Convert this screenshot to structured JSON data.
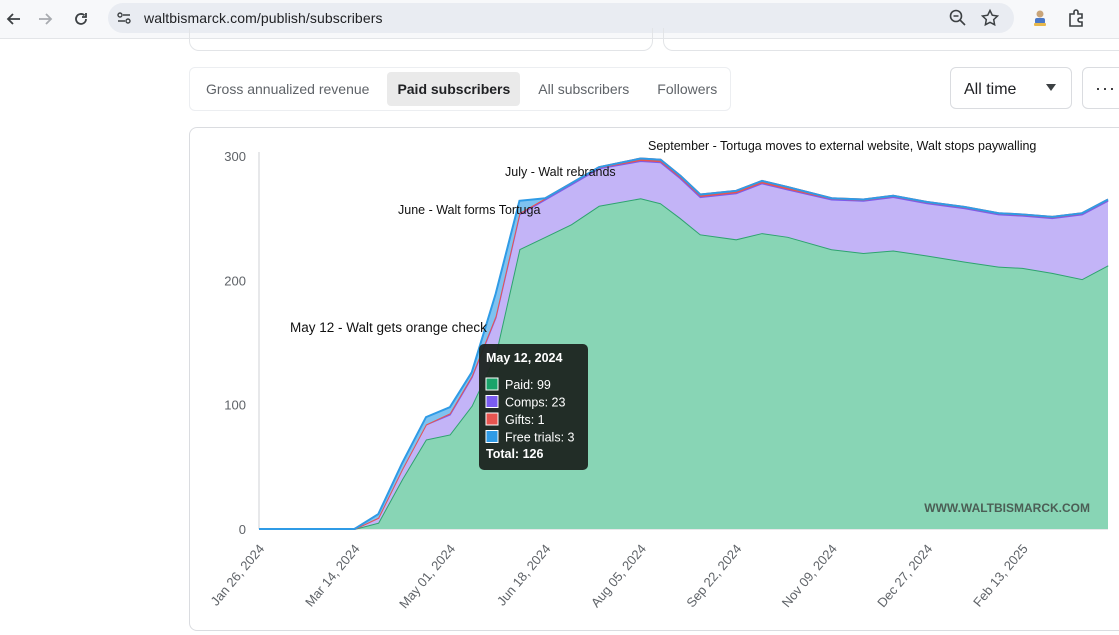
{
  "browser": {
    "url": "waltbismarck.com/publish/subscribers",
    "icons": [
      "back-arrow-icon",
      "forward-arrow-icon",
      "reload-icon",
      "site-info-icon",
      "zoom-icon",
      "bookmark-star-icon",
      "profile-extension-icon",
      "extensions-puzzle-icon"
    ]
  },
  "tabs": [
    {
      "label": "Gross annualized revenue",
      "active": false
    },
    {
      "label": "Paid subscribers",
      "active": true
    },
    {
      "label": "All subscribers",
      "active": false
    },
    {
      "label": "Followers",
      "active": false
    }
  ],
  "range_select": {
    "value": "All time"
  },
  "more_button": {
    "label": "···"
  },
  "chart_data": {
    "type": "area",
    "stacked": true,
    "x": [
      "2024-01-26",
      "2024-03-14",
      "2024-03-26",
      "2024-04-07",
      "2024-04-19",
      "2024-05-01",
      "2024-05-12",
      "2024-05-24",
      "2024-06-05",
      "2024-06-18",
      "2024-07-01",
      "2024-07-15",
      "2024-08-05",
      "2024-08-15",
      "2024-08-25",
      "2024-09-04",
      "2024-09-22",
      "2024-10-05",
      "2024-10-18",
      "2024-11-09",
      "2024-11-25",
      "2024-12-10",
      "2024-12-27",
      "2025-01-15",
      "2025-02-01",
      "2025-02-13",
      "2025-02-28",
      "2025-03-15",
      "2025-03-28"
    ],
    "series": [
      {
        "name": "Paid",
        "color": "#2ea36f",
        "fill": "#88d5b5",
        "values": [
          0,
          0,
          5,
          40,
          72,
          76,
          99,
          140,
          225,
          235,
          245,
          260,
          266,
          262,
          250,
          237,
          233,
          238,
          235,
          225,
          222,
          224,
          220,
          215,
          211,
          210,
          206,
          201,
          212
        ]
      },
      {
        "name": "Comps",
        "color": "#7a5cf0",
        "fill": "#c3b4f7",
        "values": [
          0,
          0,
          4,
          8,
          12,
          16,
          23,
          30,
          28,
          30,
          32,
          30,
          30,
          33,
          32,
          30,
          37,
          40,
          38,
          40,
          42,
          43,
          42,
          43,
          42,
          42,
          44,
          52,
          52
        ]
      },
      {
        "name": "Gifts",
        "color": "#e85550",
        "fill": "#e85550",
        "values": [
          0,
          0,
          0,
          0,
          0,
          1,
          1,
          1,
          1,
          1,
          1,
          1,
          2,
          2,
          2,
          2,
          2,
          2,
          2,
          1,
          1,
          1,
          1,
          1,
          1,
          1,
          1,
          1,
          1
        ]
      },
      {
        "name": "Free trials",
        "color": "#2f9be6",
        "fill": "#7fc2f0",
        "values": [
          0,
          0,
          3,
          5,
          6,
          5,
          3,
          18,
          10,
          0,
          0,
          0,
          0,
          0,
          0,
          0,
          0,
          0,
          0,
          0,
          0,
          0,
          0,
          0,
          0,
          0,
          0,
          0,
          0
        ]
      }
    ],
    "ylim": [
      0,
      300
    ],
    "yticks": [
      0,
      100,
      200,
      300
    ],
    "xtick_labels": [
      "Jan 26, 2024",
      "Mar 14, 2024",
      "May 01, 2024",
      "Jun 18, 2024",
      "Aug 05, 2024",
      "Sep 22, 2024",
      "Nov 09, 2024",
      "Dec 27, 2024",
      "Feb 13, 2025"
    ],
    "annotations": [
      {
        "text": "September - Tortuga moves to external website, Walt stops paywalling"
      },
      {
        "text": "July - Walt rebrands"
      },
      {
        "text": "June - Walt forms Tortuga"
      },
      {
        "text": "May 12 - Walt gets orange check"
      }
    ],
    "watermark": "WWW.WALTBISMARCK.COM",
    "tooltip": {
      "title": "May 12, 2024",
      "rows": [
        "Paid: 99",
        "Comps: 23",
        "Gifts: 1",
        "Free trials: 3"
      ],
      "colors": [
        "#1aa36a",
        "#7a5cf0",
        "#e85550",
        "#2f9be6"
      ],
      "total": "Total: 126"
    },
    "grid": false,
    "legend": "none"
  }
}
